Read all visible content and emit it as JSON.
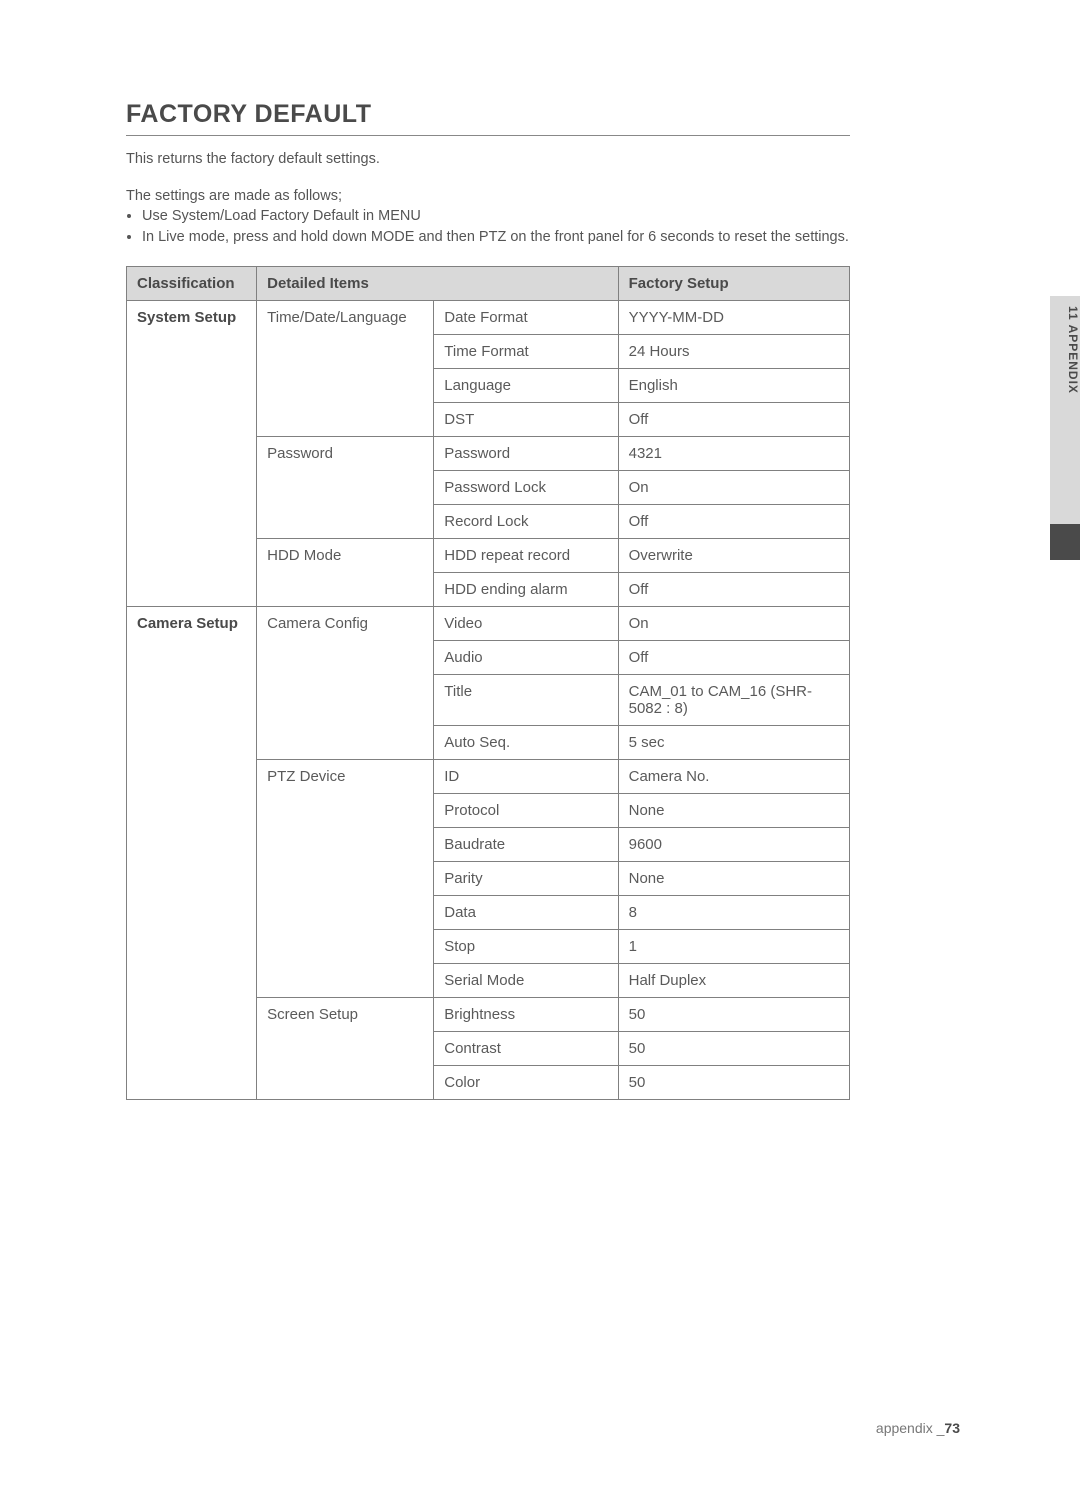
{
  "page": {
    "title": "FACTORY DEFAULT",
    "intro": "This returns the factory default settings.",
    "lead": "The settings are made as follows;",
    "bullets": [
      "Use System/Load Factory Default in MENU",
      "In Live mode, press and hold down MODE and then PTZ on the front panel for 6 seconds to reset the settings."
    ],
    "side_tab": "11 APPENDIX",
    "footer_label": "appendix _",
    "footer_page": "73"
  },
  "table": {
    "headers": {
      "classification": "Classification",
      "detailed": "Detailed Items",
      "factory": "Factory Setup"
    },
    "colors": {
      "header_bg": "#d9d9d9",
      "border": "#808080",
      "text": "#5a5a5a",
      "bold_text": "#4a4a4a"
    },
    "sections": [
      {
        "classification": "System Setup",
        "groups": [
          {
            "label": "Time/Date/Language",
            "rows": [
              {
                "item": "Date Format",
                "value": "YYYY-MM-DD"
              },
              {
                "item": "Time Format",
                "value": "24 Hours"
              },
              {
                "item": "Language",
                "value": "English"
              },
              {
                "item": "DST",
                "value": "Off"
              }
            ]
          },
          {
            "label": "Password",
            "rows": [
              {
                "item": "Password",
                "value": "4321"
              },
              {
                "item": "Password Lock",
                "value": "On"
              },
              {
                "item": "Record Lock",
                "value": "Off"
              }
            ]
          },
          {
            "label": "HDD Mode",
            "rows": [
              {
                "item": "HDD repeat record",
                "value": "Overwrite"
              },
              {
                "item": "HDD ending alarm",
                "value": "Off"
              }
            ]
          }
        ]
      },
      {
        "classification": "Camera Setup",
        "groups": [
          {
            "label": "Camera Config",
            "rows": [
              {
                "item": "Video",
                "value": "On"
              },
              {
                "item": "Audio",
                "value": "Off"
              },
              {
                "item": "Title",
                "value": "CAM_01 to CAM_16 (SHR-5082 : 8)"
              },
              {
                "item": "Auto Seq.",
                "value": "5 sec"
              }
            ]
          },
          {
            "label": "PTZ Device",
            "rows": [
              {
                "item": "ID",
                "value": "Camera No."
              },
              {
                "item": "Protocol",
                "value": "None"
              },
              {
                "item": "Baudrate",
                "value": "9600"
              },
              {
                "item": "Parity",
                "value": "None"
              },
              {
                "item": "Data",
                "value": "8"
              },
              {
                "item": "Stop",
                "value": "1"
              },
              {
                "item": "Serial Mode",
                "value": "Half Duplex"
              }
            ]
          },
          {
            "label": "Screen Setup",
            "rows": [
              {
                "item": "Brightness",
                "value": "50"
              },
              {
                "item": "Contrast",
                "value": "50"
              },
              {
                "item": "Color",
                "value": "50"
              }
            ]
          }
        ]
      }
    ]
  }
}
